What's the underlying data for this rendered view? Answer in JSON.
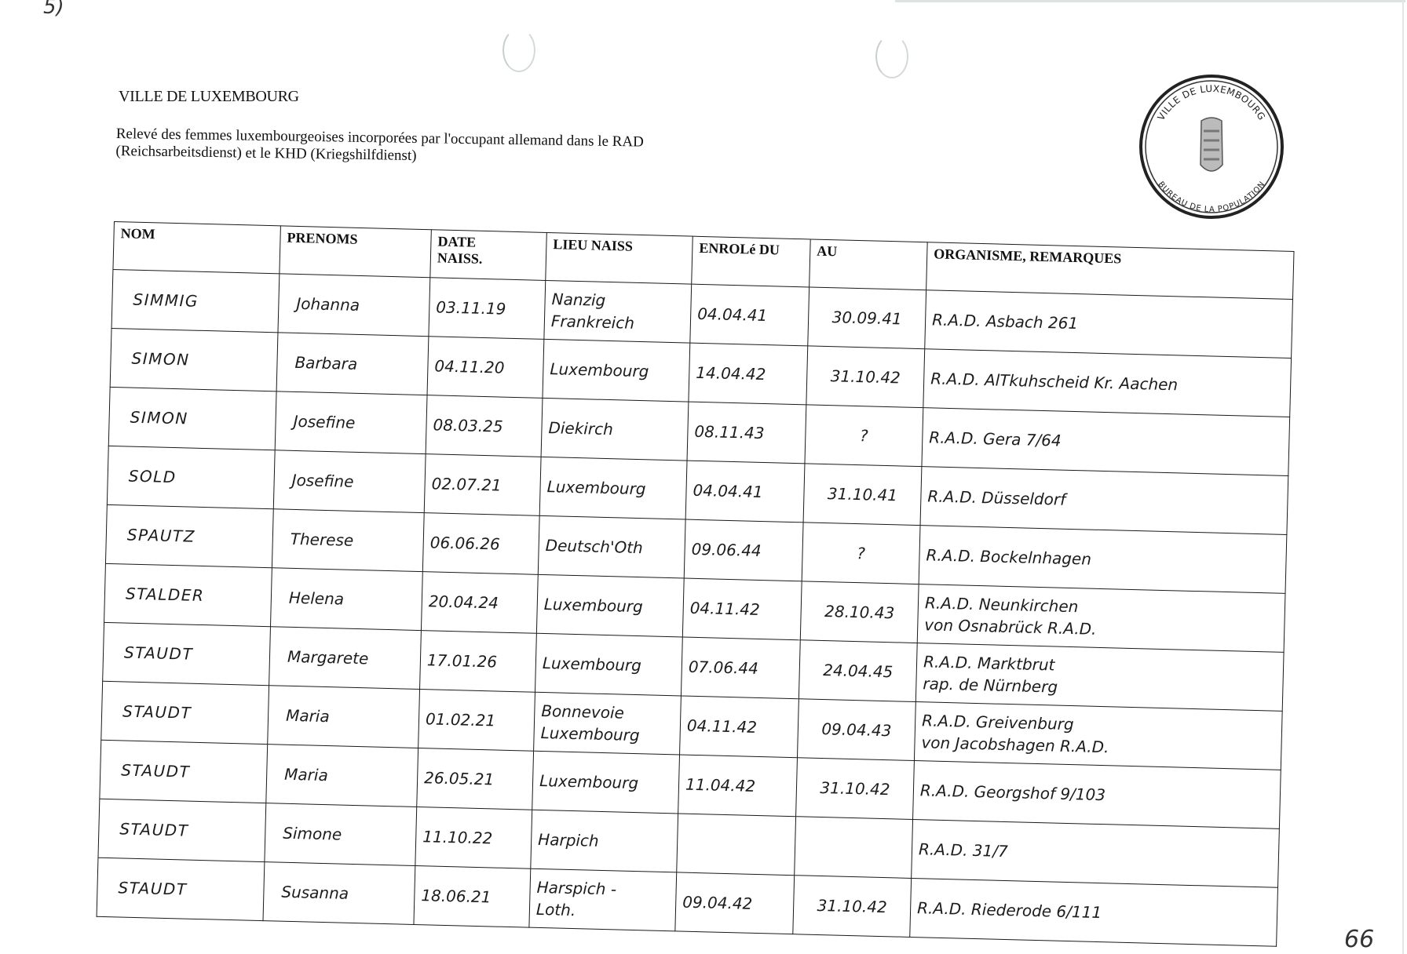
{
  "corner_mark": "5)",
  "header": {
    "title": "VILLE DE LUXEMBOURG",
    "subtitle": "Relevé des femmes luxembourgeoises incorporées par l'occupant allemand dans le RAD (Reichsarbeitsdienst) et le KHD (Kriegshilfdienst)"
  },
  "stamp": {
    "text_top": "VILLE DE LUXEMBOURG",
    "text_bottom": "BUREAU DE LA POPULATION"
  },
  "table": {
    "columns": [
      "NOM",
      "PRENOMS",
      "DATE\nNAISS.",
      "LIEU NAISS",
      "ENROLé DU",
      "AU",
      "ORGANISME, REMARQUES"
    ],
    "rows": [
      {
        "nom": "SIMMIG",
        "prenoms": "Johanna",
        "date_naiss": "03.11.19",
        "lieu_naiss": "Nanzig\nFrankreich",
        "enrole_du": "04.04.41",
        "au": "30.09.41",
        "remarques": "R.A.D.  Asbach  261"
      },
      {
        "nom": "SIMON",
        "prenoms": "Barbara",
        "date_naiss": "04.11.20",
        "lieu_naiss": "Luxembourg",
        "enrole_du": "14.04.42",
        "au": "31.10.42",
        "remarques": "R.A.D.  AlTkuhscheid  Kr. Aachen"
      },
      {
        "nom": "SIMON",
        "prenoms": "Josefine",
        "date_naiss": "08.03.25",
        "lieu_naiss": "Diekirch",
        "enrole_du": "08.11.43",
        "au": "?",
        "remarques": "R.A.D.  Gera   7/64"
      },
      {
        "nom": "SOLD",
        "prenoms": "Josefine",
        "date_naiss": "02.07.21",
        "lieu_naiss": "Luxembourg",
        "enrole_du": "04.04.41",
        "au": "31.10.41",
        "remarques": "R.A.D.  Düsseldorf"
      },
      {
        "nom": "SPAUTZ",
        "prenoms": "Therese",
        "date_naiss": "06.06.26",
        "lieu_naiss": "Deutsch'Oth",
        "enrole_du": "09.06.44",
        "au": "?",
        "remarques": "R.A.D.  Bockelnhagen"
      },
      {
        "nom": "STALDER",
        "prenoms": "Helena",
        "date_naiss": "20.04.24",
        "lieu_naiss": "Luxembourg",
        "enrole_du": "04.11.42",
        "au": "28.10.43",
        "remarques": "R.A.D. Neunkirchen\n von Osnabrück R.A.D."
      },
      {
        "nom": "STAUDT",
        "prenoms": "Margarete",
        "date_naiss": "17.01.26",
        "lieu_naiss": "Luxembourg",
        "enrole_du": "07.06.44",
        "au": "24.04.45",
        "remarques": "R.A.D. Marktbrut\nrap. de Nürnberg"
      },
      {
        "nom": "STAUDT",
        "prenoms": "Maria",
        "date_naiss": "01.02.21",
        "lieu_naiss": "Bonnevoie\nLuxembourg",
        "enrole_du": "04.11.42",
        "au": "09.04.43",
        "remarques": "R.A.D.  Greivenburg\nvon Jacobshagen  R.A.D."
      },
      {
        "nom": "STAUDT",
        "prenoms": "Maria",
        "date_naiss": "26.05.21",
        "lieu_naiss": "Luxembourg",
        "enrole_du": "11.04.42",
        "au": "31.10.42",
        "remarques": "R.A.D.  Georgshof   9/103"
      },
      {
        "nom": "STAUDT",
        "prenoms": "Simone",
        "date_naiss": "11.10.22",
        "lieu_naiss": "Harpich",
        "enrole_du": "",
        "au": "",
        "remarques": "R.A.D.  31/7"
      },
      {
        "nom": "STAUDT",
        "prenoms": "Susanna",
        "date_naiss": "18.06.21",
        "lieu_naiss": "Harspich -\nLoth.",
        "enrole_du": "09.04.42",
        "au": "31.10.42",
        "remarques": "R.A.D.  Riederode  6/111"
      }
    ]
  },
  "page_number": "66"
}
